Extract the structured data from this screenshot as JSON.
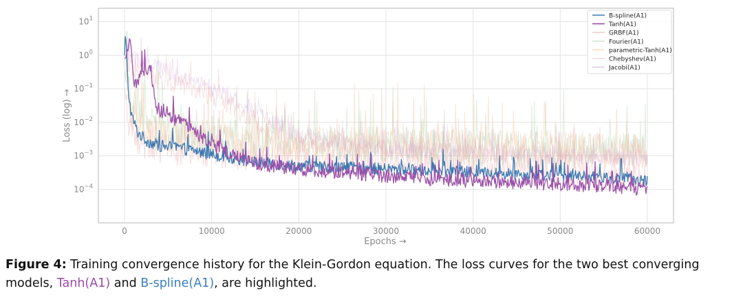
{
  "chart_data": {
    "type": "line",
    "xlabel": "Epochs →",
    "ylabel": "Loss (log) →",
    "yscale": "log",
    "xlim": [
      -3000,
      63000
    ],
    "ylim_exp": [
      -5,
      1.4
    ],
    "xticks": [
      0,
      10000,
      20000,
      30000,
      40000,
      50000,
      60000
    ],
    "xtick_labels": [
      "0",
      "10000",
      "20000",
      "30000",
      "40000",
      "50000",
      "60000"
    ],
    "yticks_exp": [
      -4,
      -3,
      -2,
      -1,
      0,
      1
    ],
    "ytick_labels": [
      {
        "base": "10",
        "exp": "−4"
      },
      {
        "base": "10",
        "exp": "−3"
      },
      {
        "base": "10",
        "exp": "−2"
      },
      {
        "base": "10",
        "exp": "−1"
      },
      {
        "base": "10",
        "exp": "0"
      },
      {
        "base": "10",
        "exp": "1"
      }
    ],
    "grid": true,
    "legend_position": "top-right",
    "series": [
      {
        "name": "B-spline(A1)",
        "color": "#3b78b0",
        "opacity": 1,
        "highlighted": true,
        "x": [
          0,
          100,
          200,
          400,
          800,
          1500,
          2500,
          4000,
          6000,
          8000,
          10000,
          12000,
          15000,
          20000,
          25000,
          30000,
          35000,
          40000,
          45000,
          50000,
          55000,
          60000
        ],
        "log": [
          0,
          0.7,
          0.3,
          -1.0,
          -1.8,
          -2.3,
          -2.55,
          -2.7,
          -2.75,
          -2.85,
          -2.95,
          -3.05,
          -3.2,
          -3.3,
          -3.35,
          -3.4,
          -3.45,
          -3.5,
          -3.55,
          -3.6,
          -3.65,
          -3.75
        ],
        "noise": 0.18
      },
      {
        "name": "Tanh(A1)",
        "color": "#9b4fa8",
        "opacity": 1,
        "highlighted": true,
        "x": [
          0,
          300,
          600,
          800,
          1100,
          1500,
          2000,
          2500,
          3000,
          3300,
          3600,
          4000,
          5000,
          6000,
          7000,
          8000,
          9000,
          10000,
          12000,
          15000,
          20000,
          25000,
          30000,
          35000,
          40000,
          45000,
          50000,
          55000,
          60000
        ],
        "log": [
          -0.1,
          -0.05,
          0.45,
          0.0,
          -0.75,
          -0.8,
          -0.5,
          -0.42,
          -0.45,
          -0.9,
          -1.5,
          -1.65,
          -1.8,
          -1.95,
          -2.1,
          -2.3,
          -2.5,
          -2.65,
          -2.9,
          -3.25,
          -3.4,
          -3.5,
          -3.6,
          -3.7,
          -3.75,
          -3.8,
          -3.85,
          -3.9,
          -4.0
        ],
        "noise": 0.2
      },
      {
        "name": "GRBF(A1)",
        "color": "#e8a5a5",
        "opacity": 0.4,
        "highlighted": false,
        "x": [
          0,
          500,
          1000,
          2000,
          4000,
          8000,
          15000,
          25000,
          35000,
          45000,
          55000,
          60000
        ],
        "log": [
          -1.0,
          -2.0,
          -2.4,
          -2.6,
          -2.8,
          -2.9,
          -3.0,
          -3.2,
          -3.3,
          -3.4,
          -3.6,
          -3.7
        ],
        "noise": 0.45
      },
      {
        "name": "Fourier(A1)",
        "color": "#a7d3a7",
        "opacity": 0.4,
        "highlighted": false,
        "x": [
          0,
          1000,
          3000,
          8000,
          15000,
          25000,
          35000,
          45000,
          55000,
          60000
        ],
        "log": [
          -0.5,
          -1.5,
          -2.0,
          -2.3,
          -2.5,
          -2.6,
          -2.7,
          -2.8,
          -2.85,
          -2.9
        ],
        "noise": 0.55
      },
      {
        "name": "parametric-Tanh(A1)",
        "color": "#f2c3a0",
        "opacity": 0.45,
        "highlighted": false,
        "x": [
          0,
          500,
          1500,
          3000,
          6000,
          10000,
          15000,
          20000,
          30000,
          40000,
          50000,
          60000
        ],
        "log": [
          -0.5,
          -1.5,
          -2.0,
          -2.3,
          -2.4,
          -2.5,
          -2.55,
          -2.6,
          -2.7,
          -2.75,
          -2.8,
          -2.9
        ],
        "noise": 0.55
      },
      {
        "name": "Chebyshev(A1)",
        "color": "#f0b3b3",
        "opacity": 0.4,
        "highlighted": false,
        "x": [
          0,
          2000,
          5000,
          8000,
          10000,
          12000,
          14000,
          16000,
          18000,
          20000,
          25000,
          30000,
          40000,
          50000,
          60000
        ],
        "log": [
          -0.2,
          -0.5,
          -0.8,
          -1.0,
          -1.2,
          -1.5,
          -1.8,
          -2.1,
          -2.4,
          -2.6,
          -2.7,
          -2.8,
          -2.9,
          -3.0,
          -3.1
        ],
        "noise": 0.3
      },
      {
        "name": "Jacobi(A1)",
        "color": "#c9a0d6",
        "opacity": 0.3,
        "highlighted": false,
        "x": [
          0,
          2000,
          5000,
          8000,
          11000,
          14000,
          17000,
          20000,
          25000,
          30000,
          40000,
          50000,
          60000
        ],
        "log": [
          0.0,
          -0.2,
          -0.5,
          -0.8,
          -1.1,
          -1.5,
          -2.0,
          -2.4,
          -2.6,
          -2.8,
          -2.9,
          -3.0,
          -3.1
        ],
        "noise": 0.25
      }
    ]
  },
  "caption": {
    "label": "Figure 4:",
    "text_1": " Training convergence history for the Klein-Gordon equation. The loss curves for the two best converging models, ",
    "tanh": "Tanh(A1)",
    "text_2": " and ",
    "bspline": "B-spline(A1)",
    "text_3": ", are highlighted."
  }
}
